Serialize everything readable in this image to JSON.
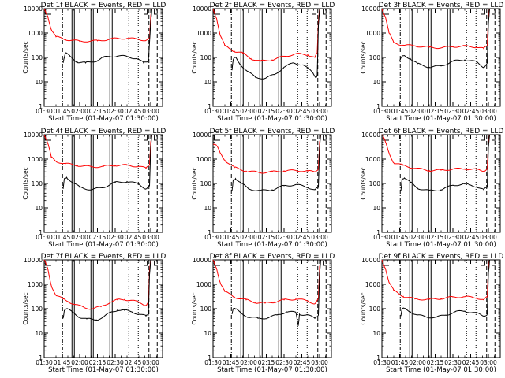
{
  "chart_data": {
    "type": "line",
    "x_axis": {
      "label": "Start Time (01-May-07 01:30:00)",
      "tick_labels": [
        "01:30",
        "01:45",
        "02:00",
        "02:15",
        "02:30",
        "02:45",
        "03:00"
      ],
      "range_minutes_after_0130": [
        0,
        100
      ]
    },
    "y_axis": {
      "label": "Counts/sec",
      "scale": "log",
      "range": [
        1,
        10000
      ],
      "tick_labels": [
        "1",
        "10",
        "100",
        "1000",
        "10000"
      ]
    },
    "series_styles": [
      {
        "key": "events",
        "color": "#000000"
      },
      {
        "key": "lld",
        "color": "#ff0000"
      }
    ],
    "panels": [
      {
        "title": "Det 1f BLACK = Events, RED = LLD",
        "lld": [
          [
            0,
            10000
          ],
          [
            3,
            5000
          ],
          [
            6,
            1400
          ],
          [
            10,
            700
          ],
          [
            18,
            550
          ],
          [
            30,
            460
          ],
          [
            45,
            480
          ],
          [
            55,
            560
          ],
          [
            62,
            600
          ],
          [
            70,
            610
          ],
          [
            80,
            560
          ],
          [
            86,
            500
          ],
          [
            89,
            600
          ],
          [
            90,
            5000
          ],
          [
            91,
            10000
          ]
        ],
        "events": [
          [
            16,
            60
          ],
          [
            17,
            100
          ],
          [
            18,
            150
          ],
          [
            22,
            110
          ],
          [
            28,
            65
          ],
          [
            35,
            60
          ],
          [
            45,
            75
          ],
          [
            50,
            100
          ],
          [
            55,
            110
          ],
          [
            62,
            115
          ],
          [
            70,
            110
          ],
          [
            78,
            90
          ],
          [
            84,
            60
          ],
          [
            88,
            70
          ],
          [
            90,
            3000
          ],
          [
            91,
            10000
          ]
        ]
      },
      {
        "title": "Det 2f BLACK = Events, RED = LLD",
        "lld": [
          [
            0,
            10000
          ],
          [
            3,
            4000
          ],
          [
            6,
            800
          ],
          [
            10,
            300
          ],
          [
            18,
            180
          ],
          [
            25,
            150
          ],
          [
            32,
            90
          ],
          [
            40,
            70
          ],
          [
            50,
            80
          ],
          [
            60,
            110
          ],
          [
            70,
            140
          ],
          [
            80,
            130
          ],
          [
            86,
            100
          ],
          [
            88,
            150
          ],
          [
            89,
            3000
          ],
          [
            90,
            10000
          ]
        ],
        "events": [
          [
            16,
            30
          ],
          [
            17,
            80
          ],
          [
            19,
            100
          ],
          [
            22,
            60
          ],
          [
            28,
            30
          ],
          [
            36,
            15
          ],
          [
            44,
            14
          ],
          [
            52,
            20
          ],
          [
            60,
            40
          ],
          [
            68,
            60
          ],
          [
            76,
            50
          ],
          [
            84,
            25
          ],
          [
            87,
            15
          ],
          [
            88,
            20
          ],
          [
            89,
            2000
          ],
          [
            90,
            10000
          ]
        ]
      },
      {
        "title": "Det 3f BLACK = Events, RED = LLD",
        "lld": [
          [
            0,
            10000
          ],
          [
            3,
            4500
          ],
          [
            6,
            1000
          ],
          [
            10,
            400
          ],
          [
            18,
            320
          ],
          [
            28,
            300
          ],
          [
            40,
            260
          ],
          [
            50,
            250
          ],
          [
            60,
            280
          ],
          [
            70,
            290
          ],
          [
            80,
            270
          ],
          [
            86,
            230
          ],
          [
            89,
            300
          ],
          [
            90,
            5000
          ],
          [
            91,
            10000
          ]
        ],
        "events": [
          [
            15,
            70
          ],
          [
            17,
            110
          ],
          [
            19,
            120
          ],
          [
            24,
            90
          ],
          [
            30,
            55
          ],
          [
            40,
            40
          ],
          [
            50,
            45
          ],
          [
            60,
            70
          ],
          [
            70,
            80
          ],
          [
            80,
            65
          ],
          [
            86,
            40
          ],
          [
            89,
            60
          ],
          [
            90,
            2500
          ],
          [
            91,
            10000
          ]
        ]
      },
      {
        "title": "Det 4f BLACK = Events, RED = LLD",
        "lld": [
          [
            0,
            10000
          ],
          [
            3,
            4500
          ],
          [
            6,
            1200
          ],
          [
            10,
            800
          ],
          [
            18,
            650
          ],
          [
            28,
            550
          ],
          [
            40,
            480
          ],
          [
            50,
            500
          ],
          [
            60,
            560
          ],
          [
            70,
            560
          ],
          [
            80,
            500
          ],
          [
            86,
            420
          ],
          [
            89,
            600
          ],
          [
            90,
            5000
          ],
          [
            91,
            10000
          ]
        ],
        "events": [
          [
            16,
            60
          ],
          [
            17,
            160
          ],
          [
            19,
            180
          ],
          [
            24,
            110
          ],
          [
            30,
            70
          ],
          [
            40,
            55
          ],
          [
            50,
            70
          ],
          [
            60,
            110
          ],
          [
            70,
            120
          ],
          [
            80,
            95
          ],
          [
            86,
            60
          ],
          [
            89,
            80
          ],
          [
            90,
            3000
          ],
          [
            91,
            10000
          ]
        ]
      },
      {
        "title": "Det 5f BLACK = Events, RED = LLD",
        "lld": [
          [
            0,
            4000
          ],
          [
            3,
            3500
          ],
          [
            6,
            1800
          ],
          [
            10,
            900
          ],
          [
            18,
            450
          ],
          [
            28,
            320
          ],
          [
            40,
            280
          ],
          [
            50,
            300
          ],
          [
            60,
            330
          ],
          [
            70,
            340
          ],
          [
            80,
            320
          ],
          [
            86,
            300
          ],
          [
            89,
            400
          ],
          [
            90,
            5000
          ],
          [
            91,
            10000
          ]
        ],
        "events": [
          [
            16,
            50
          ],
          [
            17,
            140
          ],
          [
            19,
            160
          ],
          [
            24,
            100
          ],
          [
            30,
            60
          ],
          [
            40,
            50
          ],
          [
            50,
            55
          ],
          [
            60,
            80
          ],
          [
            70,
            90
          ],
          [
            80,
            70
          ],
          [
            86,
            55
          ],
          [
            89,
            70
          ],
          [
            90,
            3000
          ],
          [
            91,
            10000
          ]
        ]
      },
      {
        "title": "Det 6f BLACK = Events, RED = LLD",
        "lld": [
          [
            0,
            10000
          ],
          [
            3,
            5000
          ],
          [
            6,
            1800
          ],
          [
            10,
            700
          ],
          [
            18,
            550
          ],
          [
            28,
            420
          ],
          [
            40,
            340
          ],
          [
            50,
            350
          ],
          [
            60,
            390
          ],
          [
            70,
            400
          ],
          [
            80,
            370
          ],
          [
            86,
            320
          ],
          [
            89,
            420
          ],
          [
            90,
            5000
          ],
          [
            91,
            10000
          ]
        ],
        "events": [
          [
            16,
            50
          ],
          [
            17,
            160
          ],
          [
            19,
            170
          ],
          [
            24,
            110
          ],
          [
            30,
            65
          ],
          [
            40,
            50
          ],
          [
            50,
            55
          ],
          [
            60,
            85
          ],
          [
            70,
            95
          ],
          [
            80,
            75
          ],
          [
            86,
            55
          ],
          [
            89,
            70
          ],
          [
            90,
            3000
          ],
          [
            91,
            10000
          ]
        ]
      },
      {
        "title": "Det 7f BLACK = Events, RED = LLD",
        "lld": [
          [
            0,
            10000
          ],
          [
            3,
            4500
          ],
          [
            6,
            900
          ],
          [
            10,
            350
          ],
          [
            16,
            250
          ],
          [
            20,
            200
          ],
          [
            26,
            150
          ],
          [
            34,
            110
          ],
          [
            40,
            100
          ],
          [
            48,
            120
          ],
          [
            56,
            190
          ],
          [
            62,
            230
          ],
          [
            68,
            240
          ],
          [
            74,
            220
          ],
          [
            80,
            180
          ],
          [
            86,
            140
          ],
          [
            88,
            200
          ],
          [
            89,
            4000
          ],
          [
            90,
            10000
          ]
        ],
        "events": [
          [
            16,
            40
          ],
          [
            17,
            85
          ],
          [
            19,
            100
          ],
          [
            24,
            70
          ],
          [
            30,
            45
          ],
          [
            36,
            38
          ],
          [
            44,
            35
          ],
          [
            50,
            45
          ],
          [
            56,
            70
          ],
          [
            62,
            90
          ],
          [
            68,
            85
          ],
          [
            74,
            75
          ],
          [
            80,
            60
          ],
          [
            86,
            50
          ],
          [
            88,
            55
          ],
          [
            89,
            2500
          ],
          [
            90,
            10000
          ]
        ]
      },
      {
        "title": "Det 8f BLACK = Events, RED = LLD",
        "lld": [
          [
            0,
            10000
          ],
          [
            3,
            4500
          ],
          [
            6,
            1200
          ],
          [
            10,
            500
          ],
          [
            18,
            300
          ],
          [
            28,
            230
          ],
          [
            36,
            180
          ],
          [
            44,
            170
          ],
          [
            52,
            190
          ],
          [
            60,
            230
          ],
          [
            70,
            250
          ],
          [
            80,
            210
          ],
          [
            86,
            160
          ],
          [
            89,
            250
          ],
          [
            90,
            5000
          ],
          [
            91,
            10000
          ]
        ],
        "events": [
          [
            16,
            60
          ],
          [
            17,
            100
          ],
          [
            19,
            95
          ],
          [
            24,
            65
          ],
          [
            30,
            45
          ],
          [
            38,
            40
          ],
          [
            46,
            42
          ],
          [
            54,
            55
          ],
          [
            62,
            75
          ],
          [
            70,
            70
          ],
          [
            72,
            20
          ],
          [
            73,
            60
          ],
          [
            80,
            55
          ],
          [
            86,
            40
          ],
          [
            89,
            55
          ],
          [
            90,
            3000
          ],
          [
            91,
            10000
          ]
        ]
      },
      {
        "title": "Det 9f BLACK = Events, RED = LLD",
        "lld": [
          [
            0,
            10000
          ],
          [
            3,
            4500
          ],
          [
            6,
            1200
          ],
          [
            10,
            550
          ],
          [
            18,
            320
          ],
          [
            28,
            250
          ],
          [
            40,
            240
          ],
          [
            50,
            260
          ],
          [
            60,
            300
          ],
          [
            70,
            310
          ],
          [
            80,
            280
          ],
          [
            86,
            230
          ],
          [
            89,
            300
          ],
          [
            90,
            5000
          ],
          [
            91,
            10000
          ]
        ],
        "events": [
          [
            16,
            50
          ],
          [
            17,
            95
          ],
          [
            19,
            100
          ],
          [
            24,
            75
          ],
          [
            30,
            55
          ],
          [
            38,
            45
          ],
          [
            46,
            45
          ],
          [
            54,
            55
          ],
          [
            62,
            75
          ],
          [
            70,
            80
          ],
          [
            80,
            65
          ],
          [
            86,
            50
          ],
          [
            89,
            60
          ],
          [
            90,
            3000
          ],
          [
            91,
            10000
          ]
        ]
      }
    ]
  }
}
